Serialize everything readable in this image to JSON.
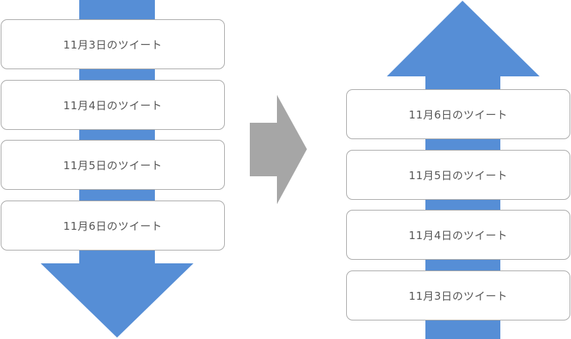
{
  "colors": {
    "arrow_blue": "#568ed6",
    "transition_gray": "#a6a6a6",
    "card_border": "#a8a8a8",
    "card_text": "#555555"
  },
  "left_column": {
    "direction": "down",
    "tweets": [
      "11月3日のツイート",
      "11月4日のツイート",
      "11月5日のツイート",
      "11月6日のツイート"
    ]
  },
  "transition": {
    "direction": "right"
  },
  "right_column": {
    "direction": "up",
    "tweets": [
      "11月6日のツイート",
      "11月5日のツイート",
      "11月4日のツイート",
      "11月3日のツイート"
    ]
  }
}
